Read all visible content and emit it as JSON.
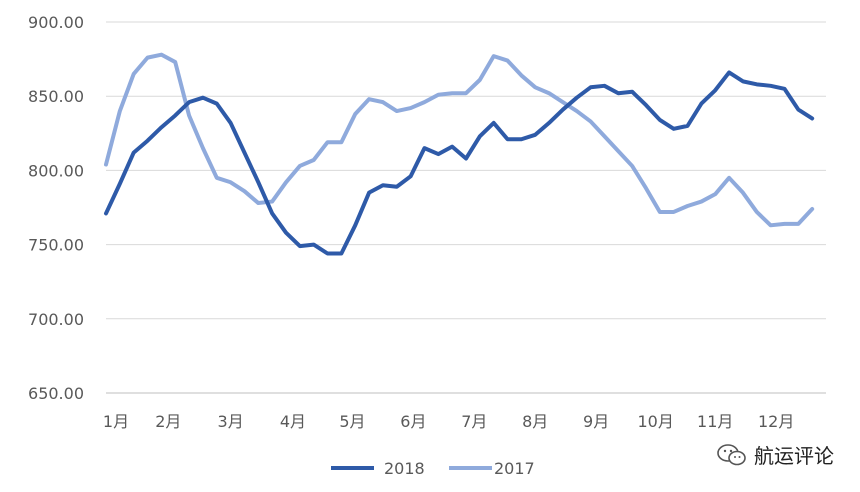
{
  "chart_data": {
    "type": "line",
    "ylim": [
      650,
      900
    ],
    "yticks": [
      "650.00",
      "700.00",
      "750.00",
      "800.00",
      "850.00",
      "900.00"
    ],
    "ytick_values": [
      650,
      700,
      750,
      800,
      850,
      900
    ],
    "xlim": [
      0,
      52
    ],
    "month_labels": [
      "1月",
      "2月",
      "3月",
      "4月",
      "5月",
      "6月",
      "7月",
      "8月",
      "9月",
      "10月",
      "11月",
      "12月"
    ],
    "month_positions": [
      0,
      4.5,
      9,
      13.5,
      17.8,
      22.2,
      26.6,
      31,
      35.4,
      39.7,
      44,
      48.4
    ],
    "grid": true,
    "legend_position": "bottom",
    "series": [
      {
        "name": "2018",
        "color": "#2e5aa8",
        "values": [
          771,
          791,
          812,
          820,
          829,
          837,
          846,
          849,
          845,
          832,
          812,
          792,
          771,
          758,
          749,
          750,
          744,
          744,
          763,
          785,
          790,
          789,
          796,
          815,
          811,
          816,
          808,
          823,
          832,
          821,
          821,
          824,
          832,
          841,
          849,
          856,
          857,
          852,
          853,
          844,
          834,
          828,
          830,
          845,
          854,
          866,
          860,
          858,
          857,
          855,
          841,
          835
        ]
      },
      {
        "name": "2017",
        "color": "#8faadc",
        "values": [
          804,
          840,
          865,
          876,
          878,
          873,
          837,
          815,
          795,
          792,
          786,
          778,
          779,
          792,
          803,
          807,
          819,
          819,
          838,
          848,
          846,
          840,
          842,
          846,
          851,
          852,
          852,
          861,
          877,
          874,
          864,
          856,
          852,
          846,
          840,
          833,
          823,
          813,
          803,
          788,
          772,
          772,
          776,
          779,
          784,
          795,
          785,
          772,
          763,
          764,
          764,
          774
        ]
      }
    ]
  },
  "watermark": {
    "text": "航运评论",
    "icon": "wechat-icon"
  }
}
